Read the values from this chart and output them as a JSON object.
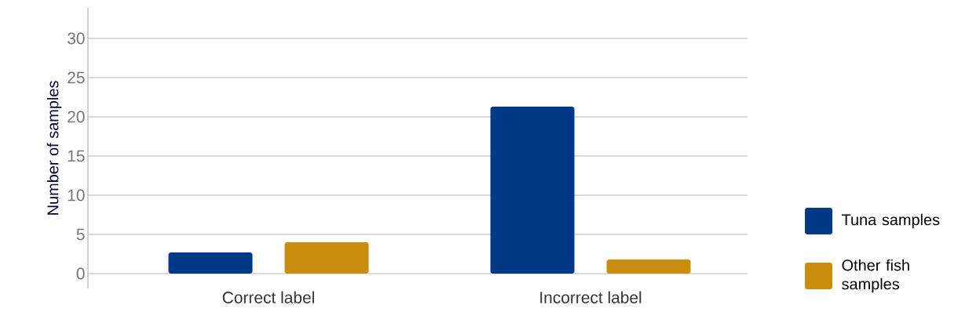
{
  "chart_data": {
    "type": "bar",
    "ylabel": "Number of samples",
    "categories": [
      "Correct label",
      "Incorrect label"
    ],
    "series": [
      {
        "name": "Tuna samples",
        "color": "#003a87",
        "values": [
          2.7,
          21.3
        ]
      },
      {
        "name": "Other fish samples",
        "color": "#c98e0e",
        "values": [
          4,
          1.8
        ]
      }
    ],
    "ylim": [
      -1.9,
      33.9
    ],
    "yticks": [
      0,
      5,
      10,
      15,
      20,
      25,
      30
    ],
    "grid": "y",
    "legend": "bottom right"
  }
}
